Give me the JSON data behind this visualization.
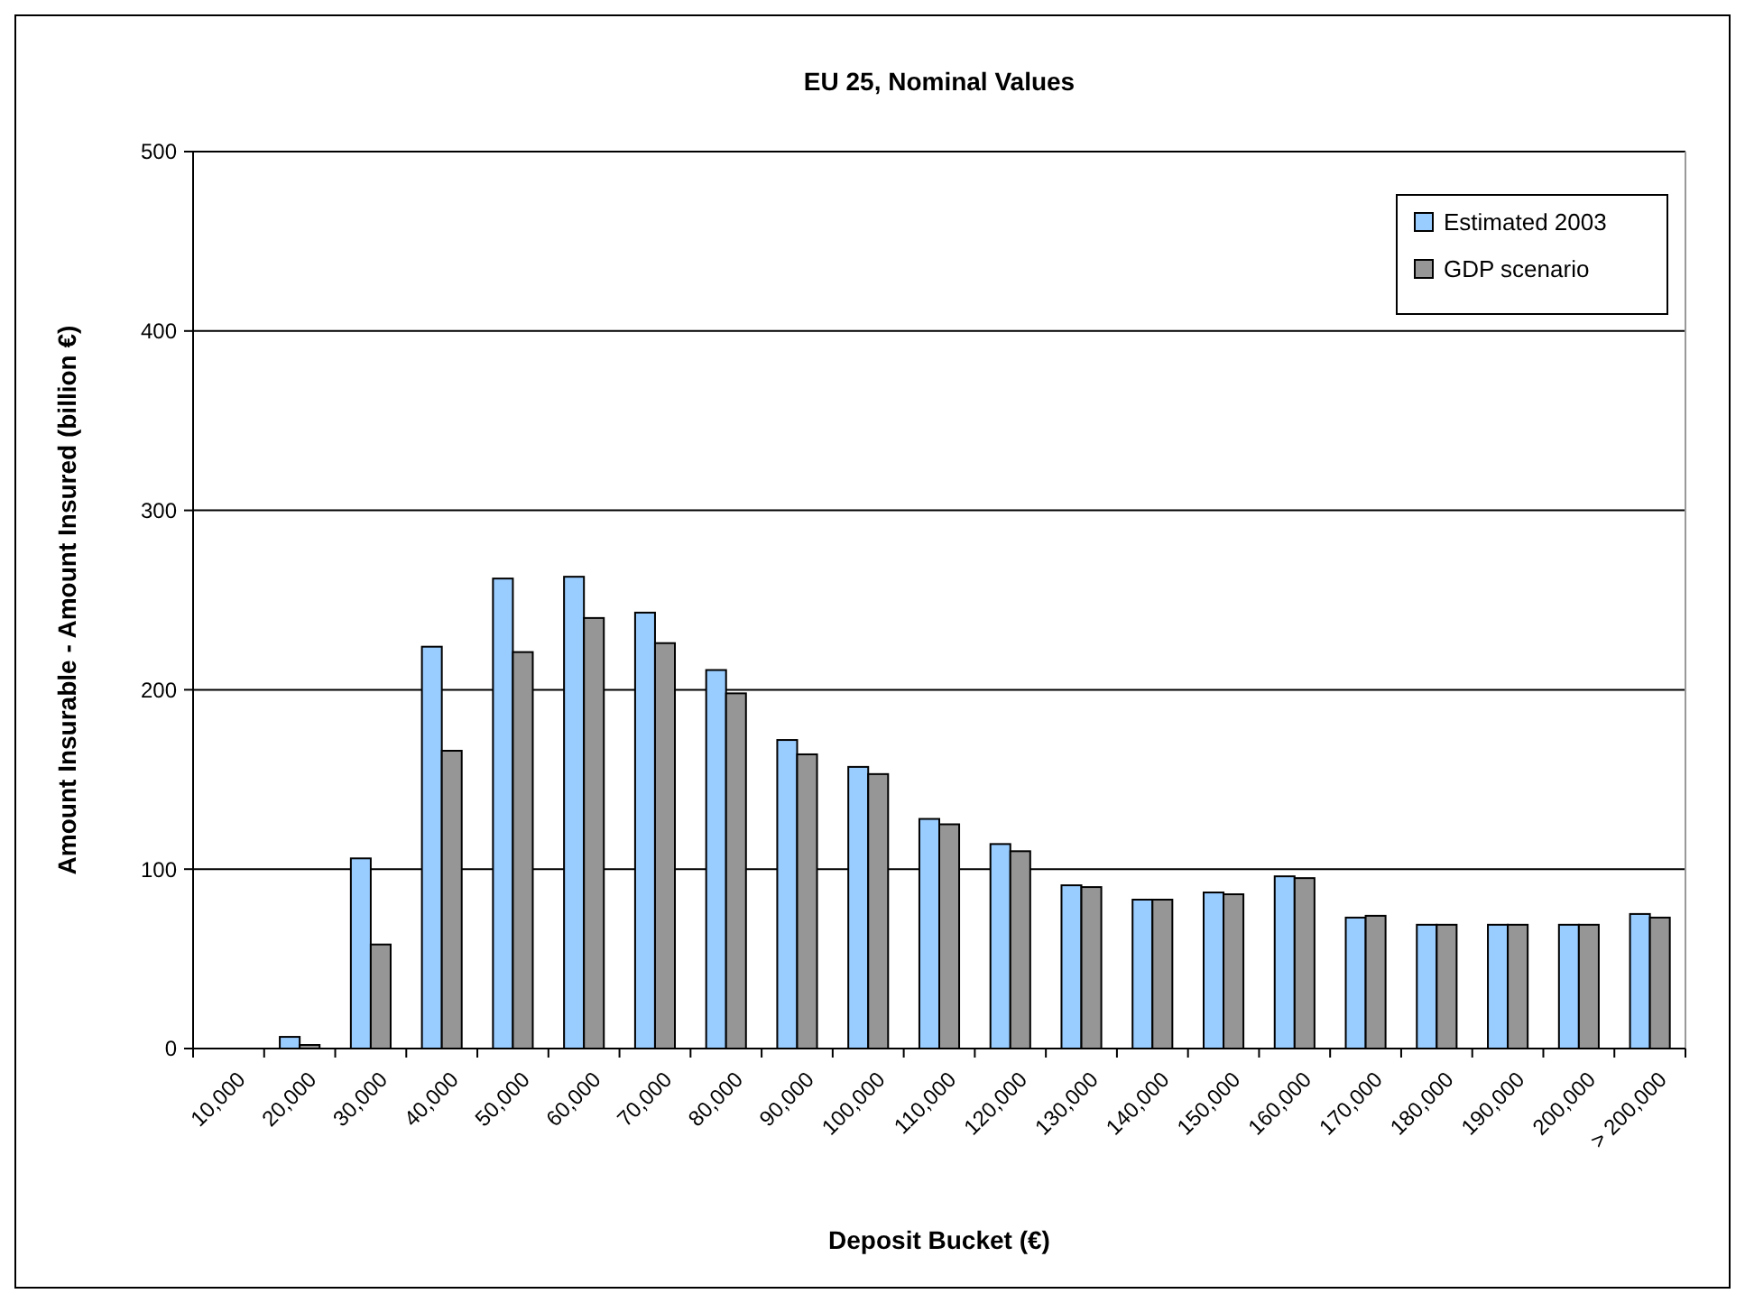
{
  "chart_data": {
    "type": "bar",
    "title": "EU 25, Nominal Values",
    "xlabel": "Deposit Bucket (€)",
    "ylabel": "Amount Insurable - Amount Insured (billion €)",
    "categories": [
      "10,000",
      "20,000",
      "30,000",
      "40,000",
      "50,000",
      "60,000",
      "70,000",
      "80,000",
      "90,000",
      "100,000",
      "110,000",
      "120,000",
      "130,000",
      "140,000",
      "150,000",
      "160,000",
      "170,000",
      "180,000",
      "190,000",
      "200,000",
      "> 200,000"
    ],
    "series": [
      {
        "name": "Estimated 2003",
        "color": "#99ccff",
        "values": [
          0,
          6.5,
          106,
          224,
          262,
          263,
          243,
          211,
          172,
          157,
          128,
          114,
          91,
          83,
          87,
          96,
          73,
          69,
          69,
          69,
          75
        ]
      },
      {
        "name": "GDP scenario",
        "color": "#969696",
        "values": [
          0,
          2,
          58,
          166,
          221,
          240,
          226,
          198,
          164,
          153,
          125,
          110,
          90,
          83,
          86,
          95,
          74,
          69,
          69,
          69,
          73
        ]
      }
    ],
    "ylim": [
      0,
      500
    ],
    "yticks": [
      0,
      100,
      200,
      300,
      400,
      500
    ],
    "grid": "y",
    "legend": "top right"
  }
}
